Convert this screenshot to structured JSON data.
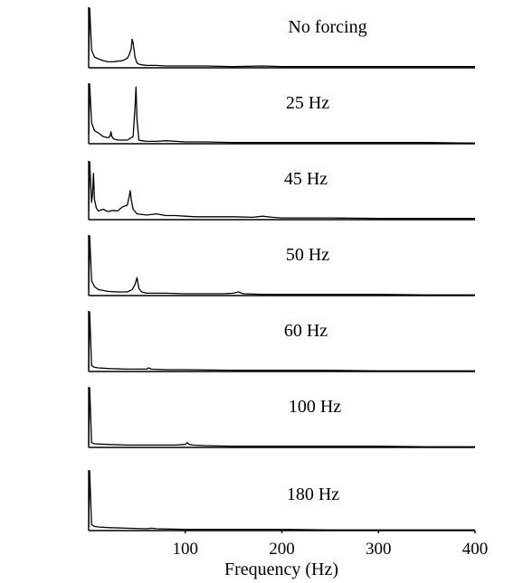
{
  "chart_data": {
    "type": "line",
    "title": "",
    "xlabel": "Frequency (Hz)",
    "ylabel": "",
    "xlim": [
      0,
      400
    ],
    "x_ticks": [
      100,
      200,
      300,
      400
    ],
    "x_tick_labels": [
      "100",
      "200",
      "300",
      "400"
    ],
    "grid": false,
    "legend": "none",
    "stacked_panels": true,
    "series": [
      {
        "name": "No forcing",
        "x": [
          0,
          1,
          3,
          6,
          10,
          15,
          20,
          25,
          30,
          35,
          40,
          42,
          44,
          45,
          46,
          47,
          48,
          50,
          52,
          55,
          60,
          70,
          80,
          90,
          100,
          120,
          150,
          180,
          200,
          220,
          250,
          300,
          350,
          400
        ],
        "y": [
          0.15,
          1.0,
          0.3,
          0.18,
          0.15,
          0.12,
          0.1,
          0.1,
          0.11,
          0.12,
          0.16,
          0.22,
          0.32,
          0.48,
          0.42,
          0.3,
          0.18,
          0.08,
          0.06,
          0.05,
          0.04,
          0.04,
          0.03,
          0.03,
          0.03,
          0.03,
          0.02,
          0.03,
          0.02,
          0.02,
          0.02,
          0.02,
          0.02,
          0.02
        ]
      },
      {
        "name": "25 Hz",
        "x": [
          0,
          1,
          3,
          6,
          10,
          15,
          20,
          22,
          23,
          24,
          26,
          30,
          40,
          46,
          48,
          49,
          50,
          52,
          55,
          60,
          70,
          80,
          100,
          120,
          150,
          200,
          250,
          300,
          350,
          400
        ],
        "y": [
          0.15,
          1.0,
          0.35,
          0.22,
          0.18,
          0.12,
          0.1,
          0.12,
          0.2,
          0.12,
          0.08,
          0.06,
          0.06,
          0.12,
          0.6,
          0.95,
          0.4,
          0.06,
          0.05,
          0.04,
          0.04,
          0.05,
          0.03,
          0.03,
          0.02,
          0.02,
          0.02,
          0.02,
          0.02,
          0.01
        ]
      },
      {
        "name": "45 Hz",
        "x": [
          0,
          1,
          3,
          4,
          5,
          6,
          8,
          10,
          15,
          20,
          25,
          30,
          35,
          40,
          42,
          43,
          44,
          46,
          50,
          60,
          70,
          80,
          90,
          100,
          110,
          120,
          150,
          170,
          180,
          190,
          200,
          250,
          300,
          350,
          400
        ],
        "y": [
          0.15,
          1.0,
          0.3,
          0.45,
          0.8,
          0.35,
          0.2,
          0.15,
          0.18,
          0.14,
          0.16,
          0.15,
          0.22,
          0.25,
          0.4,
          0.5,
          0.35,
          0.18,
          0.1,
          0.08,
          0.1,
          0.07,
          0.07,
          0.06,
          0.05,
          0.05,
          0.05,
          0.04,
          0.06,
          0.04,
          0.03,
          0.03,
          0.02,
          0.02,
          0.02
        ]
      },
      {
        "name": "50 Hz",
        "x": [
          0,
          1,
          3,
          6,
          10,
          20,
          30,
          40,
          45,
          48,
          50,
          52,
          55,
          60,
          70,
          80,
          100,
          120,
          140,
          150,
          155,
          160,
          180,
          200,
          250,
          300,
          350,
          400
        ],
        "y": [
          0.1,
          1.0,
          0.25,
          0.15,
          0.1,
          0.07,
          0.06,
          0.06,
          0.1,
          0.18,
          0.3,
          0.12,
          0.06,
          0.04,
          0.04,
          0.04,
          0.03,
          0.03,
          0.03,
          0.04,
          0.06,
          0.03,
          0.02,
          0.02,
          0.02,
          0.02,
          0.01,
          0.01
        ]
      },
      {
        "name": "60 Hz",
        "x": [
          0,
          1,
          3,
          6,
          10,
          20,
          40,
          60,
          62,
          65,
          80,
          100,
          150,
          200,
          250,
          300,
          350,
          400
        ],
        "y": [
          0.05,
          1.0,
          0.1,
          0.07,
          0.06,
          0.05,
          0.04,
          0.04,
          0.06,
          0.04,
          0.03,
          0.03,
          0.02,
          0.02,
          0.02,
          0.01,
          0.01,
          0.01
        ]
      },
      {
        "name": "100 Hz",
        "x": [
          0,
          1,
          3,
          6,
          20,
          40,
          60,
          80,
          90,
          100,
          102,
          104,
          108,
          120,
          150,
          200,
          250,
          300,
          350,
          400
        ],
        "y": [
          0.05,
          1.0,
          0.08,
          0.06,
          0.05,
          0.04,
          0.04,
          0.04,
          0.04,
          0.05,
          0.08,
          0.05,
          0.04,
          0.03,
          0.02,
          0.02,
          0.02,
          0.02,
          0.01,
          0.01
        ]
      },
      {
        "name": "180 Hz",
        "x": [
          0,
          1,
          3,
          6,
          10,
          20,
          40,
          60,
          65,
          70,
          100,
          150,
          200,
          250,
          300,
          350,
          400
        ],
        "y": [
          0.05,
          1.0,
          0.1,
          0.07,
          0.06,
          0.05,
          0.04,
          0.03,
          0.04,
          0.03,
          0.02,
          0.02,
          0.02,
          0.01,
          0.01,
          0.01,
          0.01
        ]
      }
    ]
  }
}
